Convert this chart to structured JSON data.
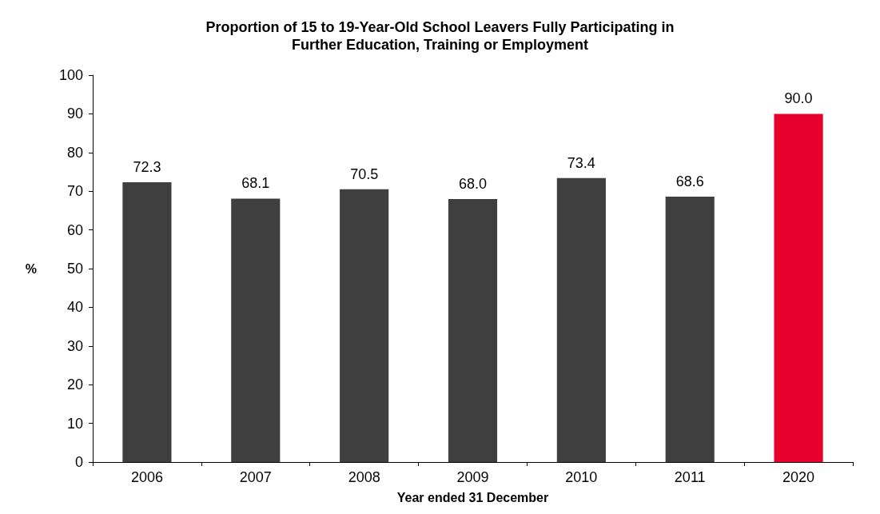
{
  "chart_data": {
    "type": "bar",
    "title": "Proportion of 15 to 19-Year-Old School Leavers Fully Participating in\nFurther Education, Training or Employment",
    "xlabel": "Year ended 31 December",
    "ylabel": "%",
    "categories": [
      "2006",
      "2007",
      "2008",
      "2009",
      "2010",
      "2011",
      "2020"
    ],
    "values": [
      72.3,
      68.1,
      70.5,
      68.0,
      73.4,
      68.6,
      90.0
    ],
    "colors": [
      "#3f3f3f",
      "#3f3f3f",
      "#3f3f3f",
      "#3f3f3f",
      "#3f3f3f",
      "#3f3f3f",
      "#e8002d"
    ],
    "value_labels": [
      "72.3",
      "68.1",
      "70.5",
      "68.0",
      "73.4",
      "68.6",
      "90.0"
    ],
    "ylim": [
      0,
      100
    ],
    "yticks": [
      0,
      10,
      20,
      30,
      40,
      50,
      60,
      70,
      80,
      90,
      100
    ],
    "grid": false
  }
}
